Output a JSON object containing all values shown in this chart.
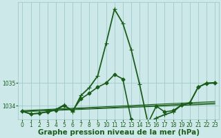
{
  "title": "Graphe pression niveau de la mer (hPa)",
  "background_color": "#cce8e8",
  "grid_color": "#99c4c4",
  "line_color": "#1a5c1a",
  "xlim_min": -0.5,
  "xlim_max": 23.5,
  "ylim_min": 1033.4,
  "ylim_max": 1038.6,
  "yticks": [
    1034,
    1035
  ],
  "xticks": [
    0,
    1,
    2,
    3,
    4,
    5,
    6,
    7,
    8,
    9,
    10,
    11,
    12,
    13,
    14,
    15,
    16,
    17,
    18,
    19,
    20,
    21,
    22,
    23
  ],
  "title_fontsize": 7.5,
  "tick_fontsize": 5.5,
  "series_diamond": {
    "x": [
      0,
      1,
      2,
      3,
      4,
      5,
      6,
      7,
      8,
      9,
      10,
      11,
      12,
      13,
      14,
      15,
      16,
      17,
      18,
      19,
      20,
      21,
      22,
      23
    ],
    "y": [
      1033.75,
      1033.63,
      1033.66,
      1033.72,
      1033.8,
      1034.0,
      1033.78,
      1034.3,
      1034.55,
      1034.82,
      1035.0,
      1035.38,
      1035.18,
      1033.38,
      1033.25,
      1033.22,
      1033.98,
      1033.72,
      1033.78,
      1034.02,
      1034.12,
      1034.82,
      1034.98,
      1035.0
    ]
  },
  "series_plus": {
    "x": [
      0,
      1,
      2,
      3,
      4,
      5,
      6,
      7,
      8,
      9,
      10,
      11,
      12,
      13,
      14,
      15,
      16,
      17,
      18,
      19,
      20,
      21,
      22,
      23
    ],
    "y": [
      1033.75,
      1033.63,
      1033.66,
      1033.73,
      1033.83,
      1034.03,
      1033.73,
      1034.45,
      1034.8,
      1035.32,
      1036.75,
      1038.28,
      1037.65,
      1036.48,
      1034.95,
      1033.22,
      1033.45,
      1033.6,
      1033.72,
      1034.02,
      1034.12,
      1034.82,
      1035.0,
      1035.02
    ]
  },
  "trend_lines": [
    {
      "x0": 0,
      "x1": 23,
      "y0": 1033.73,
      "y1": 1034.07
    },
    {
      "x0": 0,
      "x1": 23,
      "y0": 1033.75,
      "y1": 1034.12
    },
    {
      "x0": 0,
      "x1": 23,
      "y0": 1033.78,
      "y1": 1034.18
    }
  ]
}
